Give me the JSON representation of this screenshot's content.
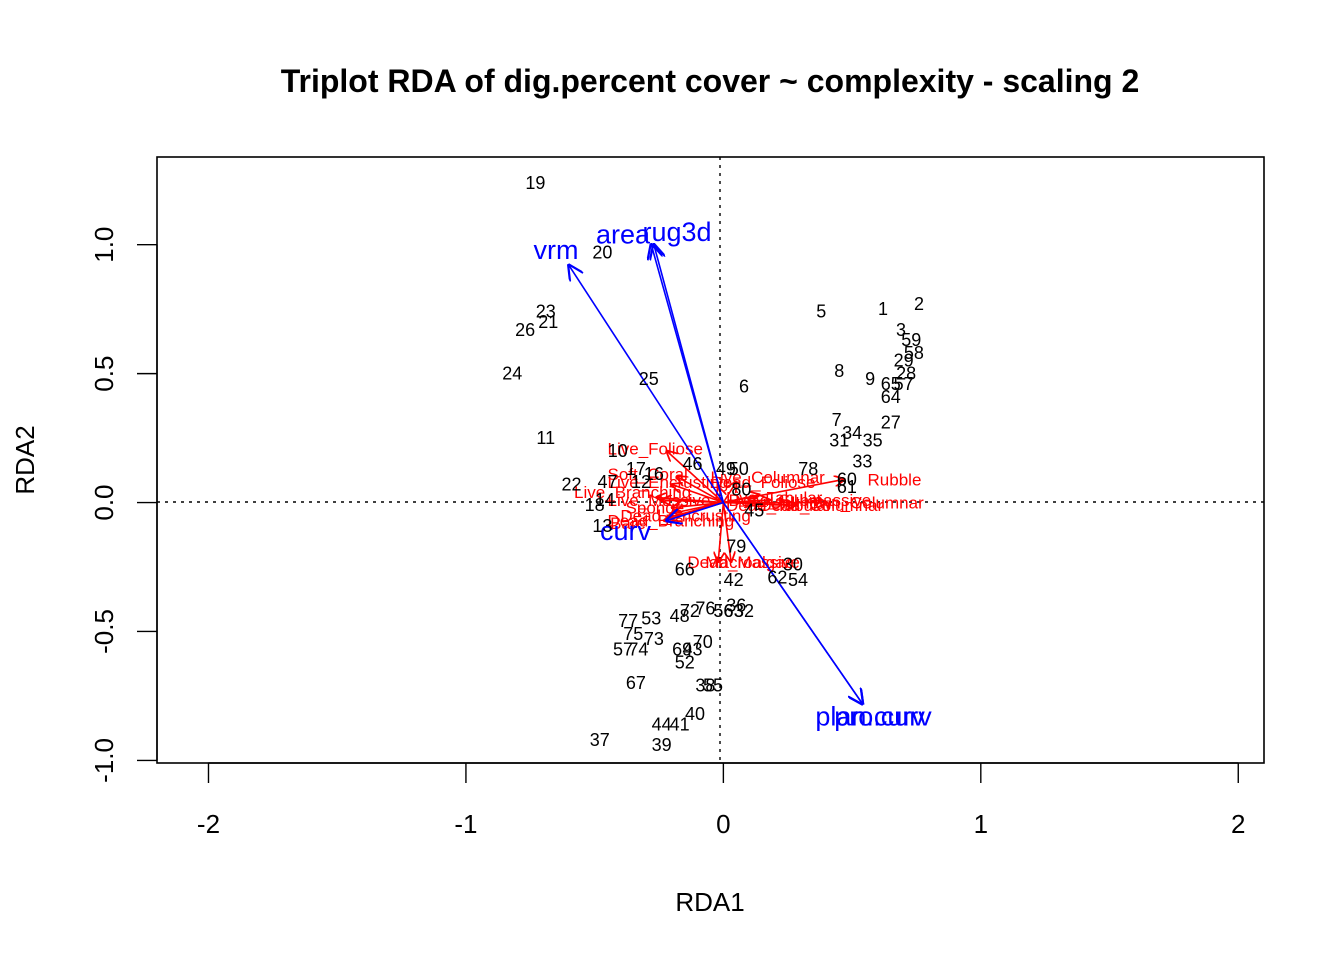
{
  "chart_data": {
    "type": "scatter",
    "title": "Triplot RDA of dig.percent cover ~ complexity  - scaling 2",
    "xlabel": "RDA1",
    "ylabel": "RDA2",
    "xlim": [
      -2.2,
      2.1
    ],
    "ylim": [
      -1.01,
      1.34
    ],
    "xticks": [
      -2,
      -1,
      0,
      1,
      2
    ],
    "xtick_labels": [
      "-2",
      "-1",
      "0",
      "1",
      "2"
    ],
    "yticks": [
      -1.0,
      -0.5,
      0.0,
      0.5,
      1.0
    ],
    "ytick_labels": [
      "-1.0",
      "-0.5",
      "0.0",
      "0.5",
      "1.0"
    ],
    "grid": false,
    "reference_lines": "dashed lines at x=0 and y=0",
    "colors": {
      "sites": "#000000",
      "species": "#ff0000",
      "environment": "#0000ff"
    },
    "sites": [
      {
        "label": "19",
        "x": -0.73,
        "y": 1.24
      },
      {
        "label": "20",
        "x": -0.47,
        "y": 0.97
      },
      {
        "label": "1",
        "x": 0.62,
        "y": 0.75
      },
      {
        "label": "2",
        "x": 0.76,
        "y": 0.77
      },
      {
        "label": "5",
        "x": 0.38,
        "y": 0.74
      },
      {
        "label": "23",
        "x": -0.69,
        "y": 0.74
      },
      {
        "label": "21",
        "x": -0.68,
        "y": 0.7
      },
      {
        "label": "26",
        "x": -0.77,
        "y": 0.67
      },
      {
        "label": "3",
        "x": 0.69,
        "y": 0.67
      },
      {
        "label": "59",
        "x": 0.73,
        "y": 0.63
      },
      {
        "label": "58",
        "x": 0.74,
        "y": 0.58
      },
      {
        "label": "29",
        "x": 0.7,
        "y": 0.55
      },
      {
        "label": "28",
        "x": 0.71,
        "y": 0.5
      },
      {
        "label": "24",
        "x": -0.82,
        "y": 0.5
      },
      {
        "label": "8",
        "x": 0.45,
        "y": 0.51
      },
      {
        "label": "9",
        "x": 0.57,
        "y": 0.48
      },
      {
        "label": "65",
        "x": 0.65,
        "y": 0.46
      },
      {
        "label": "57",
        "x": 0.7,
        "y": 0.46
      },
      {
        "label": "64",
        "x": 0.65,
        "y": 0.41
      },
      {
        "label": "25",
        "x": -0.29,
        "y": 0.48
      },
      {
        "label": "6",
        "x": 0.08,
        "y": 0.45
      },
      {
        "label": "7",
        "x": 0.44,
        "y": 0.32
      },
      {
        "label": "27",
        "x": 0.65,
        "y": 0.31
      },
      {
        "label": "34",
        "x": 0.5,
        "y": 0.27
      },
      {
        "label": "31",
        "x": 0.45,
        "y": 0.24
      },
      {
        "label": "35",
        "x": 0.58,
        "y": 0.24
      },
      {
        "label": "11",
        "x": -0.69,
        "y": 0.25
      },
      {
        "label": "10",
        "x": -0.41,
        "y": 0.2
      },
      {
        "label": "33",
        "x": 0.54,
        "y": 0.16
      },
      {
        "label": "46",
        "x": -0.12,
        "y": 0.15
      },
      {
        "label": "17",
        "x": -0.34,
        "y": 0.13
      },
      {
        "label": "16",
        "x": -0.27,
        "y": 0.11
      },
      {
        "label": "49",
        "x": 0.01,
        "y": 0.13
      },
      {
        "label": "50",
        "x": 0.06,
        "y": 0.13
      },
      {
        "label": "78",
        "x": 0.33,
        "y": 0.13
      },
      {
        "label": "60",
        "x": 0.48,
        "y": 0.09
      },
      {
        "label": "61",
        "x": 0.48,
        "y": 0.06
      },
      {
        "label": "22",
        "x": -0.59,
        "y": 0.07
      },
      {
        "label": "47",
        "x": -0.45,
        "y": 0.08
      },
      {
        "label": "12",
        "x": -0.32,
        "y": 0.08
      },
      {
        "label": "80",
        "x": 0.07,
        "y": 0.05
      },
      {
        "label": "14",
        "x": -0.46,
        "y": 0.01
      },
      {
        "label": "18",
        "x": -0.5,
        "y": -0.01
      },
      {
        "label": "45",
        "x": 0.12,
        "y": -0.03
      },
      {
        "label": "13",
        "x": -0.47,
        "y": -0.09
      },
      {
        "label": "79",
        "x": 0.05,
        "y": -0.17
      },
      {
        "label": "30",
        "x": 0.27,
        "y": -0.24
      },
      {
        "label": "66",
        "x": -0.15,
        "y": -0.26
      },
      {
        "label": "62",
        "x": 0.21,
        "y": -0.29
      },
      {
        "label": "54",
        "x": 0.29,
        "y": -0.3
      },
      {
        "label": "42",
        "x": 0.04,
        "y": -0.3
      },
      {
        "label": "36",
        "x": 0.05,
        "y": -0.4
      },
      {
        "label": "72",
        "x": -0.13,
        "y": -0.42
      },
      {
        "label": "76",
        "x": -0.07,
        "y": -0.41
      },
      {
        "label": "56",
        "x": 0.0,
        "y": -0.42
      },
      {
        "label": "63",
        "x": 0.04,
        "y": -0.42
      },
      {
        "label": "32",
        "x": 0.08,
        "y": -0.42
      },
      {
        "label": "48",
        "x": -0.17,
        "y": -0.44
      },
      {
        "label": "53",
        "x": -0.28,
        "y": -0.45
      },
      {
        "label": "77",
        "x": -0.37,
        "y": -0.46
      },
      {
        "label": "75",
        "x": -0.35,
        "y": -0.51
      },
      {
        "label": "73",
        "x": -0.27,
        "y": -0.53
      },
      {
        "label": "70",
        "x": -0.08,
        "y": -0.54
      },
      {
        "label": "57",
        "x": -0.39,
        "y": -0.57
      },
      {
        "label": "74",
        "x": -0.33,
        "y": -0.57
      },
      {
        "label": "69",
        "x": -0.16,
        "y": -0.57
      },
      {
        "label": "43",
        "x": -0.12,
        "y": -0.57
      },
      {
        "label": "52",
        "x": -0.15,
        "y": -0.62
      },
      {
        "label": "67",
        "x": -0.34,
        "y": -0.7
      },
      {
        "label": "38",
        "x": -0.07,
        "y": -0.71
      },
      {
        "label": "55",
        "x": -0.04,
        "y": -0.71
      },
      {
        "label": "40",
        "x": -0.11,
        "y": -0.82
      },
      {
        "label": "44",
        "x": -0.24,
        "y": -0.86
      },
      {
        "label": "41",
        "x": -0.17,
        "y": -0.86
      },
      {
        "label": "37",
        "x": -0.48,
        "y": -0.92
      },
      {
        "label": "39",
        "x": -0.24,
        "y": -0.94
      }
    ],
    "species": [
      {
        "label": "Live_Foliose",
        "x": -0.22,
        "y": 0.2,
        "lx": -0.45,
        "ly": 0.21
      },
      {
        "label": "Soft_Coral",
        "x": -0.18,
        "y": 0.1,
        "lx": -0.45,
        "ly": 0.11
      },
      {
        "label": "Live_Encrusting",
        "x": -0.2,
        "y": 0.07,
        "lx": -0.45,
        "ly": 0.08
      },
      {
        "label": "Live_Columnar",
        "x": 0.05,
        "y": 0.08,
        "lx": -0.05,
        "ly": 0.1
      },
      {
        "label": "Dead_Foliose",
        "x": -0.02,
        "y": 0.06,
        "lx": -0.05,
        "ly": 0.08
      },
      {
        "label": "Live_Branching",
        "x": -0.26,
        "y": 0.02,
        "lx": -0.58,
        "ly": 0.04
      },
      {
        "label": "Live_Massive",
        "x": -0.24,
        "y": 0.01,
        "lx": -0.45,
        "ly": 0.01
      },
      {
        "label": "Sponge",
        "x": -0.2,
        "y": -0.02,
        "lx": -0.38,
        "ly": -0.02
      },
      {
        "label": "Dead_Encrusting",
        "x": -0.19,
        "y": -0.04,
        "lx": -0.4,
        "ly": -0.05
      },
      {
        "label": "Dead_Branching",
        "x": -0.22,
        "y": -0.06,
        "lx": -0.45,
        "ly": -0.07
      },
      {
        "label": "Bare",
        "x": -0.23,
        "y": -0.07,
        "lx": -0.44,
        "ly": -0.08
      },
      {
        "label": "Dead_Tabular",
        "x": 0.12,
        "y": 0.0,
        "lx": 0.01,
        "ly": -0.01
      },
      {
        "label": "Dead_Columnar",
        "x": 0.28,
        "y": -0.01,
        "lx": 0.14,
        "ly": -0.01
      },
      {
        "label": "Live_Tabular",
        "x": 0.14,
        "y": 0.03,
        "lx": 0.01,
        "ly": 0.02
      },
      {
        "label": "Dead_Submassive",
        "x": 0.18,
        "y": 0.01,
        "lx": 0.02,
        "ly": 0.01
      },
      {
        "label": "Unknown_Columnar",
        "x": 0.4,
        "y": 0.0,
        "lx": 0.18,
        "ly": 0.0
      },
      {
        "label": "Rubble",
        "x": 0.47,
        "y": 0.09,
        "lx": 0.56,
        "ly": 0.09
      },
      {
        "label": "Dead_Massive",
        "x": -0.02,
        "y": -0.23,
        "lx": -0.14,
        "ly": -0.23
      },
      {
        "label": "Macroalgae",
        "x": 0.03,
        "y": -0.23,
        "lx": -0.07,
        "ly": -0.23
      }
    ],
    "environment": [
      {
        "label": "vrm",
        "x": -0.6,
        "y": 0.92,
        "lx": -0.65,
        "ly": 0.98
      },
      {
        "label": "area",
        "x": -0.27,
        "y": 1.0,
        "lx": -0.39,
        "ly": 1.04
      },
      {
        "label": "rug3d",
        "x": -0.28,
        "y": 1.0,
        "lx": -0.18,
        "ly": 1.05
      },
      {
        "label": "curv",
        "x": -0.22,
        "y": -0.07,
        "lx": -0.38,
        "ly": -0.11
      },
      {
        "label": "plan.curv",
        "x": 0.54,
        "y": -0.78,
        "lx": 0.57,
        "ly": -0.83
      },
      {
        "label": "pro.curv",
        "x": 0.54,
        "y": -0.78,
        "lx": 0.62,
        "ly": -0.83
      }
    ]
  }
}
